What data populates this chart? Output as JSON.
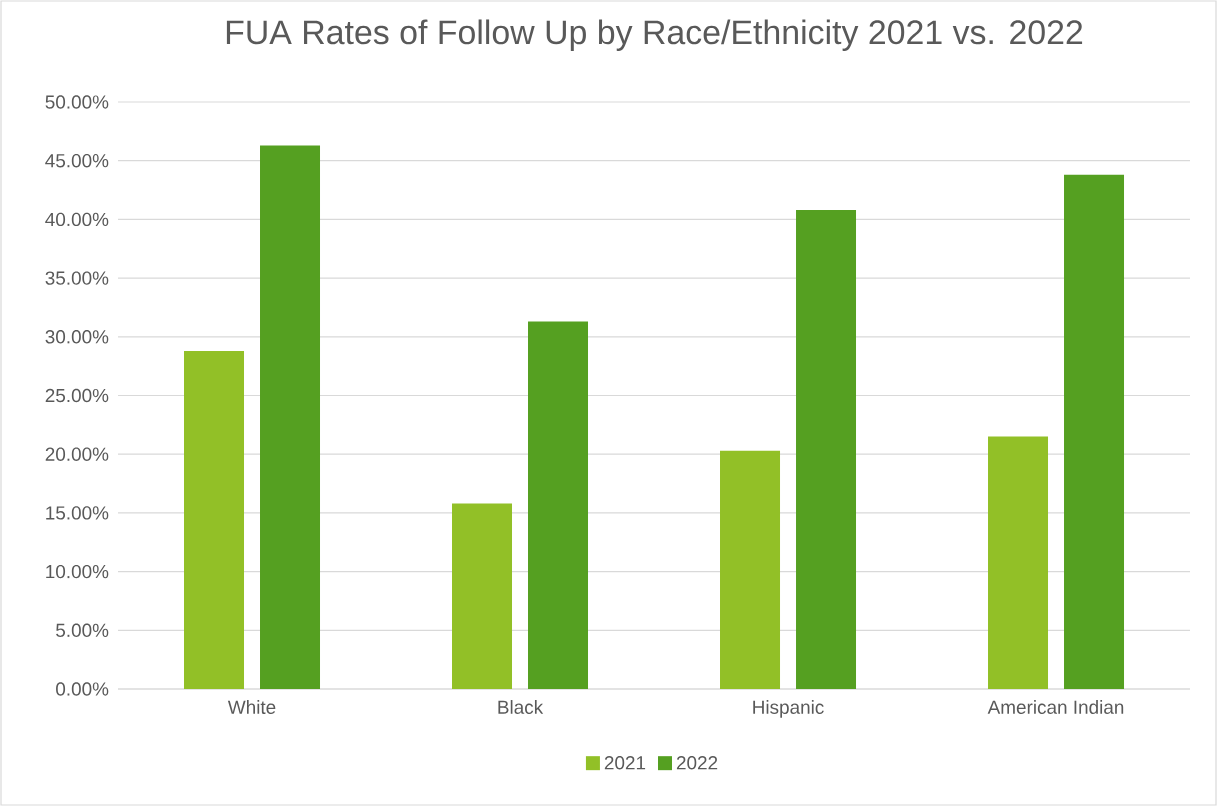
{
  "chart_data": {
    "type": "bar",
    "title": "FUA Rates of Follow Up by Race/Ethnicity 2021 vs. 2022",
    "categories": [
      "White",
      "Black",
      "Hispanic",
      "American Indian"
    ],
    "series": [
      {
        "name": "2021",
        "color": "#92c027",
        "values": [
          28.8,
          15.8,
          20.3,
          21.5
        ]
      },
      {
        "name": "2022",
        "color": "#55a021",
        "values": [
          46.3,
          31.3,
          40.8,
          43.8
        ]
      }
    ],
    "ylim": [
      0,
      50
    ],
    "yticks": [
      {
        "value": 0,
        "label": "0.00%"
      },
      {
        "value": 5,
        "label": "5.00%"
      },
      {
        "value": 10,
        "label": "10.00%"
      },
      {
        "value": 15,
        "label": "15.00%"
      },
      {
        "value": 20,
        "label": "20.00%"
      },
      {
        "value": 25,
        "label": "25.00%"
      },
      {
        "value": 30,
        "label": "30.00%"
      },
      {
        "value": 35,
        "label": "35.00%"
      },
      {
        "value": 40,
        "label": "40.00%"
      },
      {
        "value": 45,
        "label": "45.00%"
      },
      {
        "value": 50,
        "label": "50.00%"
      }
    ],
    "grid": "y",
    "legend": "bottom"
  }
}
